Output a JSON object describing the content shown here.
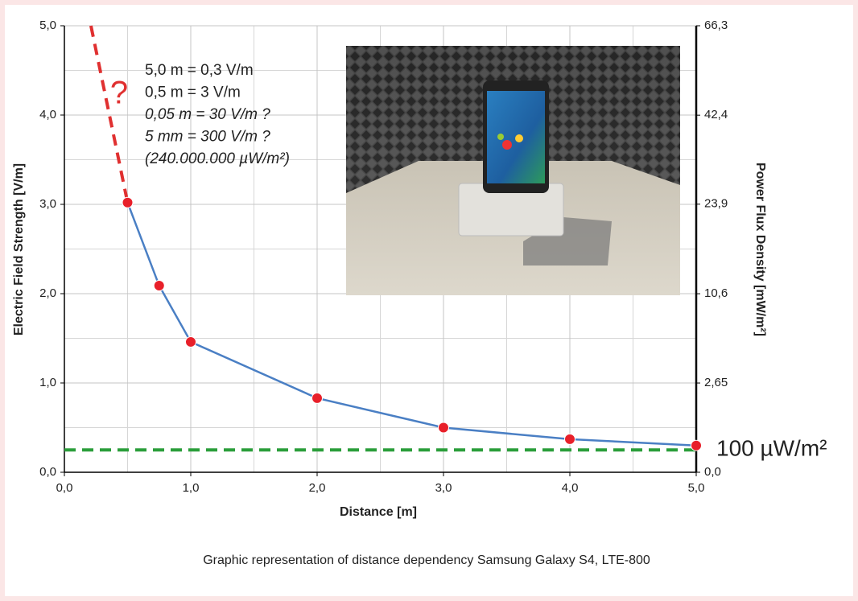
{
  "chart_data": {
    "type": "line",
    "caption": "Graphic representation of distance dependency Samsung Galaxy S4, LTE-800",
    "xlabel": "Distance [m]",
    "ylabel": "Electric Field Strength [V/m]",
    "y2label": "Power Flux Density [mW/m²]",
    "xlim": [
      0,
      5
    ],
    "ylim": [
      0,
      5
    ],
    "y2lim": [
      0,
      66.3
    ],
    "y2scale": "sqrt",
    "grid": true,
    "xticks": [
      {
        "value": 0,
        "label": "0,0"
      },
      {
        "value": 1,
        "label": "1,0"
      },
      {
        "value": 2,
        "label": "2,0"
      },
      {
        "value": 3,
        "label": "3,0"
      },
      {
        "value": 4,
        "label": "4,0"
      },
      {
        "value": 5,
        "label": "5,0"
      }
    ],
    "xminorticks": [
      0.5,
      1.5,
      2.5,
      3.5,
      4.5
    ],
    "yticks": [
      {
        "value": 0,
        "label": "0,0"
      },
      {
        "value": 1,
        "label": "1,0"
      },
      {
        "value": 2,
        "label": "2,0"
      },
      {
        "value": 3,
        "label": "3,0"
      },
      {
        "value": 4,
        "label": "4,0"
      },
      {
        "value": 5,
        "label": "5,0"
      }
    ],
    "yminorticks": [
      0.5,
      1.5,
      2.5,
      3.5,
      4.5
    ],
    "y2ticks": [
      {
        "value": 0,
        "label": "0,0"
      },
      {
        "value": 2.65,
        "label": "2,65"
      },
      {
        "value": 10.6,
        "label": "10,6"
      },
      {
        "value": 23.9,
        "label": "23,9"
      },
      {
        "value": 42.4,
        "label": "42,4"
      },
      {
        "value": 66.3,
        "label": "66,3"
      }
    ],
    "series": [
      {
        "color": "#4a7fc4",
        "marker_color": "#e8202a",
        "x": [
          0.5,
          0.75,
          1.0,
          2.0,
          3.0,
          4.0,
          5.0
        ],
        "values": [
          3.02,
          2.09,
          1.46,
          0.83,
          0.5,
          0.37,
          0.3
        ]
      },
      {
        "color": "#e03030",
        "dashed": true,
        "x": [
          0.21,
          0.5
        ],
        "values": [
          5.0,
          3.02
        ]
      }
    ],
    "hline": {
      "value": 0.25,
      "color": "#2a9e3a",
      "dashed": true,
      "label": "100 µW/m²"
    },
    "question_mark": "?",
    "annotations": [
      {
        "text": "5,0  m = 0,3 V/m",
        "italic": false
      },
      {
        "text": "0,5  m = 3 V/m",
        "italic": false
      },
      {
        "text": "0,05 m = 30 V/m ?",
        "italic": true
      },
      {
        "text": "5 mm = 300 V/m ?",
        "italic": true
      },
      {
        "text": "(240.000.000 µW/m²)",
        "italic": true
      }
    ]
  }
}
